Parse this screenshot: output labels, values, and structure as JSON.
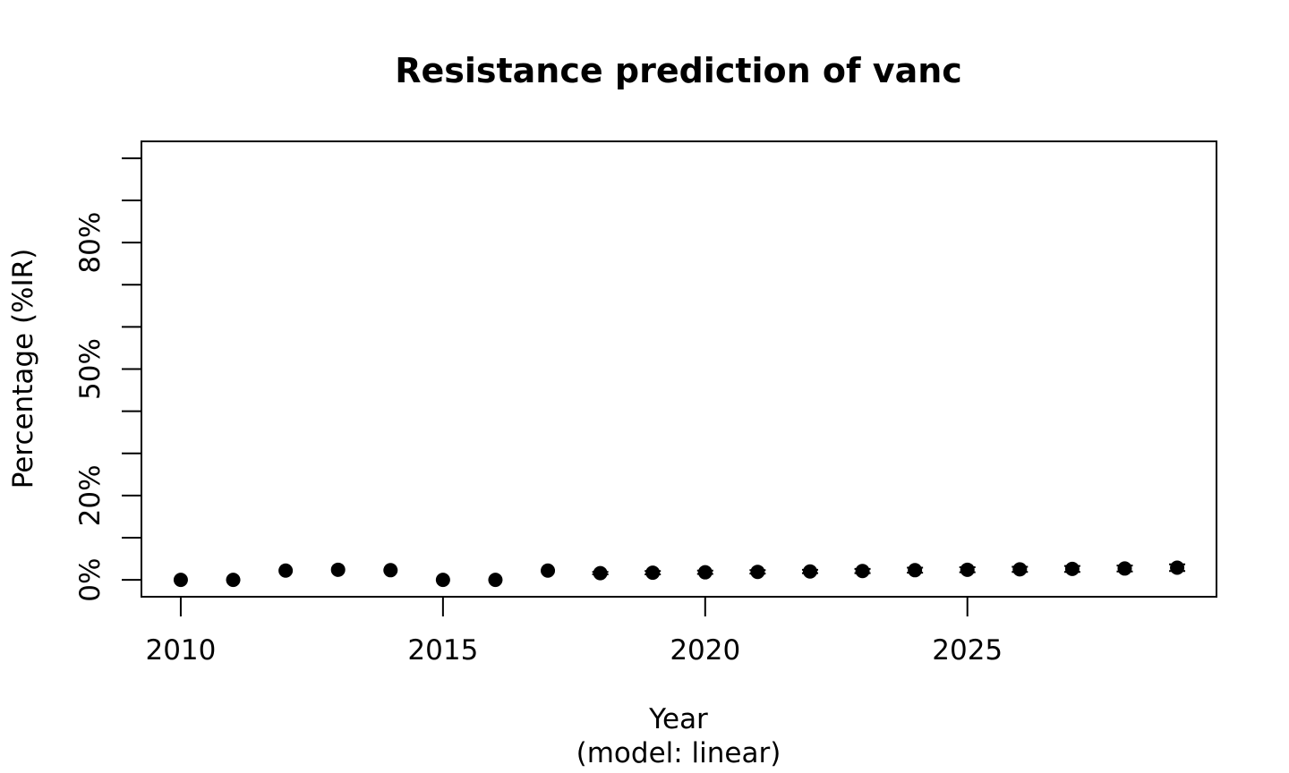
{
  "chart_data": {
    "type": "scatter",
    "title": "Resistance prediction of vanc",
    "xlabel": "Year",
    "xlabel_sub": "(model: linear)",
    "ylabel": "Percentage (%IR)",
    "xlim": [
      2009.25,
      2029.75
    ],
    "ylim": [
      -0.04,
      1.04
    ],
    "x_ticks": [
      2010,
      2015,
      2020,
      2025
    ],
    "x_tick_labels": [
      "2010",
      "2015",
      "2020",
      "2025"
    ],
    "y_ticks": [
      0,
      0.1,
      0.2,
      0.3,
      0.4,
      0.5,
      0.6,
      0.7,
      0.8,
      0.9,
      1.0
    ],
    "y_tick_labels": [
      {
        "value": 0,
        "label": "0%"
      },
      {
        "value": 0.2,
        "label": "20%"
      },
      {
        "value": 0.5,
        "label": "50%"
      },
      {
        "value": 0.8,
        "label": "80%"
      }
    ],
    "grid": false,
    "series": [
      {
        "x": [
          2010,
          2011,
          2012,
          2013,
          2014,
          2015,
          2016,
          2017,
          2018,
          2019,
          2020,
          2021,
          2022,
          2023,
          2024,
          2025,
          2026,
          2027,
          2028,
          2029
        ],
        "y": [
          0.0,
          0.0,
          0.022,
          0.024,
          0.023,
          0.0,
          0.0,
          0.022,
          0.016,
          0.017,
          0.018,
          0.019,
          0.02,
          0.021,
          0.023,
          0.024,
          0.025,
          0.026,
          0.027,
          0.029
        ],
        "err_low": [
          null,
          null,
          null,
          null,
          null,
          null,
          null,
          null,
          0.013,
          0.013,
          0.014,
          0.015,
          0.016,
          0.016,
          0.017,
          0.018,
          0.019,
          0.019,
          0.02,
          0.021
        ],
        "err_high": [
          null,
          null,
          null,
          null,
          null,
          null,
          null,
          null,
          0.019,
          0.021,
          0.022,
          0.023,
          0.024,
          0.026,
          0.029,
          0.03,
          0.031,
          0.033,
          0.034,
          0.037
        ]
      }
    ]
  }
}
